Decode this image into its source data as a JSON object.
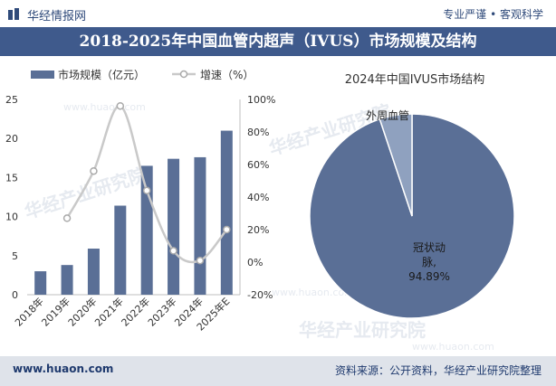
{
  "header": {
    "brand": "华经情报网",
    "slogan": "专业严谨 • 客观科学",
    "title": "2018-2025年中国血管内超声（IVUS）市场规模及结构"
  },
  "footer": {
    "site": "www.huaon.com",
    "source": "资料来源：公开资料，华经产业研究院整理"
  },
  "watermark": {
    "name": "华经产业研究院",
    "url": "www.huaon.com"
  },
  "colors": {
    "bar": "#5a6f96",
    "line": "#c9c9c9",
    "title_bg": "#3f5a8c",
    "pie_main": "#5a6f96",
    "pie_minor": "#8fa1bf"
  },
  "chart_data": [
    {
      "type": "bar+line",
      "categories": [
        "2018年",
        "2019年",
        "2020年",
        "2021年",
        "2022年",
        "2023年",
        "2024年",
        "2025年E"
      ],
      "series": [
        {
          "name": "市场规模（亿元）",
          "axis": "left",
          "values": [
            3.0,
            3.8,
            5.9,
            11.4,
            16.5,
            17.4,
            17.6,
            21.0
          ]
        },
        {
          "name": "增速（%）",
          "axis": "right",
          "values": [
            null,
            27,
            56,
            96,
            44,
            7,
            1,
            20
          ]
        }
      ],
      "ylim": [
        0,
        25
      ],
      "yticks": [
        "0",
        "5",
        "10",
        "15",
        "20",
        "25"
      ],
      "y2lim": [
        -20,
        100
      ],
      "y2ticks": [
        "-20%",
        "0%",
        "20%",
        "40%",
        "60%",
        "80%",
        "100%"
      ],
      "legend": [
        "市场规模（亿元）",
        "增速（%）"
      ]
    },
    {
      "type": "pie",
      "title": "2024年中国IVUS市场结构",
      "slices": [
        {
          "label": "冠状动脉",
          "value": 94.89,
          "label_lines": [
            "冠状动",
            "脉,",
            "94.89%"
          ]
        },
        {
          "label": "外周血管",
          "value": 5.11
        }
      ]
    }
  ]
}
